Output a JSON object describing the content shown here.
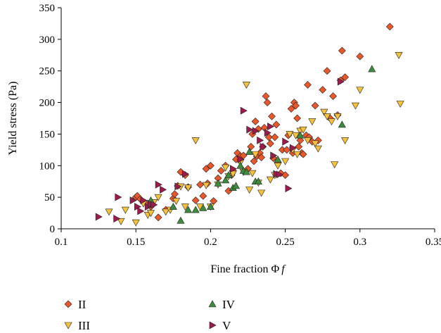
{
  "chart_data": {
    "type": "scatter",
    "title": "",
    "xlabel": "Fine fraction Φ",
    "xlabel_italic": "f",
    "ylabel": "Yield stress (Pa)",
    "xlim": [
      0.1,
      0.35
    ],
    "ylim": [
      0,
      350
    ],
    "xticks": [
      0.1,
      0.15,
      0.2,
      0.25,
      0.3,
      0.35
    ],
    "xtick_labels": [
      "0.1",
      "0.15",
      "0.2",
      "0.25",
      "0.3",
      "0.35"
    ],
    "yticks": [
      0,
      50,
      100,
      150,
      200,
      250,
      300,
      350
    ],
    "ytick_labels": [
      "0",
      "50",
      "100",
      "150",
      "200",
      "250",
      "300",
      "350"
    ],
    "grid": false,
    "legend_position": "bottom",
    "series": [
      {
        "name": "II",
        "marker": "diamond",
        "color": "#e8582a",
        "points": [
          [
            0.15,
            50
          ],
          [
            0.151,
            52
          ],
          [
            0.153,
            47
          ],
          [
            0.158,
            40
          ],
          [
            0.16,
            35
          ],
          [
            0.165,
            18
          ],
          [
            0.17,
            30
          ],
          [
            0.175,
            48
          ],
          [
            0.176,
            55
          ],
          [
            0.178,
            68
          ],
          [
            0.18,
            90
          ],
          [
            0.183,
            85
          ],
          [
            0.185,
            66
          ],
          [
            0.19,
            45
          ],
          [
            0.193,
            70
          ],
          [
            0.195,
            52
          ],
          [
            0.197,
            95
          ],
          [
            0.198,
            72
          ],
          [
            0.2,
            100
          ],
          [
            0.202,
            44
          ],
          [
            0.205,
            80
          ],
          [
            0.207,
            92
          ],
          [
            0.21,
            100
          ],
          [
            0.212,
            60
          ],
          [
            0.214,
            85
          ],
          [
            0.215,
            92
          ],
          [
            0.217,
            110
          ],
          [
            0.218,
            120
          ],
          [
            0.22,
            115
          ],
          [
            0.222,
            116
          ],
          [
            0.225,
            95
          ],
          [
            0.227,
            130
          ],
          [
            0.228,
            150
          ],
          [
            0.229,
            107
          ],
          [
            0.23,
            170
          ],
          [
            0.231,
            115
          ],
          [
            0.232,
            158
          ],
          [
            0.233,
            120
          ],
          [
            0.234,
            113
          ],
          [
            0.235,
            130
          ],
          [
            0.236,
            160
          ],
          [
            0.237,
            210
          ],
          [
            0.238,
            200
          ],
          [
            0.239,
            145
          ],
          [
            0.24,
            135
          ],
          [
            0.241,
            178
          ],
          [
            0.242,
            112
          ],
          [
            0.243,
            145
          ],
          [
            0.244,
            165
          ],
          [
            0.245,
            105
          ],
          [
            0.247,
            88
          ],
          [
            0.248,
            125
          ],
          [
            0.25,
            85
          ],
          [
            0.251,
            125
          ],
          [
            0.252,
            148
          ],
          [
            0.254,
            190
          ],
          [
            0.255,
            120
          ],
          [
            0.256,
            200
          ],
          [
            0.257,
            195
          ],
          [
            0.258,
            175
          ],
          [
            0.259,
            130
          ],
          [
            0.26,
            140
          ],
          [
            0.261,
            120
          ],
          [
            0.262,
            118
          ],
          [
            0.264,
            148
          ],
          [
            0.265,
            228
          ],
          [
            0.266,
            145
          ],
          [
            0.268,
            138
          ],
          [
            0.27,
            195
          ],
          [
            0.272,
            140
          ],
          [
            0.275,
            220
          ],
          [
            0.278,
            250
          ],
          [
            0.28,
            175
          ],
          [
            0.282,
            210
          ],
          [
            0.285,
            180
          ],
          [
            0.287,
            235
          ],
          [
            0.288,
            282
          ],
          [
            0.29,
            240
          ],
          [
            0.3,
            273
          ],
          [
            0.32,
            320
          ]
        ]
      },
      {
        "name": "III",
        "marker": "triangle-down",
        "color": "#f6c23e",
        "points": [
          [
            0.132,
            27
          ],
          [
            0.14,
            12
          ],
          [
            0.143,
            30
          ],
          [
            0.15,
            10
          ],
          [
            0.155,
            40
          ],
          [
            0.158,
            22
          ],
          [
            0.16,
            25
          ],
          [
            0.162,
            42
          ],
          [
            0.165,
            50
          ],
          [
            0.17,
            27
          ],
          [
            0.173,
            30
          ],
          [
            0.177,
            44
          ],
          [
            0.18,
            67
          ],
          [
            0.183,
            35
          ],
          [
            0.185,
            65
          ],
          [
            0.19,
            140
          ],
          [
            0.193,
            35
          ],
          [
            0.197,
            69
          ],
          [
            0.2,
            35
          ],
          [
            0.205,
            70
          ],
          [
            0.21,
            97
          ],
          [
            0.212,
            83
          ],
          [
            0.215,
            87
          ],
          [
            0.22,
            105
          ],
          [
            0.222,
            90
          ],
          [
            0.224,
            228
          ],
          [
            0.226,
            62
          ],
          [
            0.228,
            88
          ],
          [
            0.23,
            118
          ],
          [
            0.232,
            73
          ],
          [
            0.234,
            57
          ],
          [
            0.24,
            78
          ],
          [
            0.243,
            85
          ],
          [
            0.245,
            100
          ],
          [
            0.25,
            107
          ],
          [
            0.253,
            150
          ],
          [
            0.255,
            125
          ],
          [
            0.257,
            148
          ],
          [
            0.258,
            118
          ],
          [
            0.26,
            155
          ],
          [
            0.262,
            157
          ],
          [
            0.265,
            140
          ],
          [
            0.268,
            170
          ],
          [
            0.27,
            135
          ],
          [
            0.272,
            127
          ],
          [
            0.276,
            185
          ],
          [
            0.278,
            178
          ],
          [
            0.281,
            170
          ],
          [
            0.283,
            102
          ],
          [
            0.285,
            178
          ],
          [
            0.29,
            140
          ],
          [
            0.297,
            195
          ],
          [
            0.3,
            220
          ],
          [
            0.326,
            275
          ],
          [
            0.327,
            198
          ]
        ]
      },
      {
        "name": "IV",
        "marker": "triangle-up",
        "color": "#3d8b3d",
        "points": [
          [
            0.16,
            45
          ],
          [
            0.175,
            35
          ],
          [
            0.18,
            13
          ],
          [
            0.185,
            30
          ],
          [
            0.19,
            30
          ],
          [
            0.195,
            33
          ],
          [
            0.2,
            35
          ],
          [
            0.205,
            72
          ],
          [
            0.21,
            77
          ],
          [
            0.212,
            85
          ],
          [
            0.215,
            65
          ],
          [
            0.217,
            68
          ],
          [
            0.22,
            100
          ],
          [
            0.222,
            92
          ],
          [
            0.224,
            90
          ],
          [
            0.226,
            122
          ],
          [
            0.23,
            75
          ],
          [
            0.232,
            75
          ],
          [
            0.245,
            110
          ],
          [
            0.26,
            148
          ],
          [
            0.288,
            165
          ],
          [
            0.308,
            253
          ]
        ]
      },
      {
        "name": "V",
        "marker": "triangle-right",
        "color": "#9b1b4c",
        "points": [
          [
            0.125,
            19
          ],
          [
            0.137,
            16
          ],
          [
            0.138,
            50
          ],
          [
            0.148,
            45
          ],
          [
            0.151,
            35
          ],
          [
            0.153,
            28
          ],
          [
            0.155,
            45
          ],
          [
            0.158,
            35
          ],
          [
            0.16,
            39
          ],
          [
            0.162,
            38
          ],
          [
            0.165,
            70
          ],
          [
            0.168,
            62
          ],
          [
            0.178,
            67
          ],
          [
            0.183,
            87
          ],
          [
            0.215,
            95
          ],
          [
            0.22,
            110
          ],
          [
            0.222,
            187
          ],
          [
            0.226,
            157
          ],
          [
            0.23,
            155
          ],
          [
            0.233,
            140
          ],
          [
            0.235,
            130
          ],
          [
            0.238,
            152
          ],
          [
            0.24,
            162
          ],
          [
            0.242,
            116
          ],
          [
            0.244,
            87
          ],
          [
            0.246,
            86
          ],
          [
            0.25,
            138
          ],
          [
            0.252,
            64
          ],
          [
            0.255,
            128
          ],
          [
            0.287,
            233
          ]
        ]
      }
    ]
  }
}
